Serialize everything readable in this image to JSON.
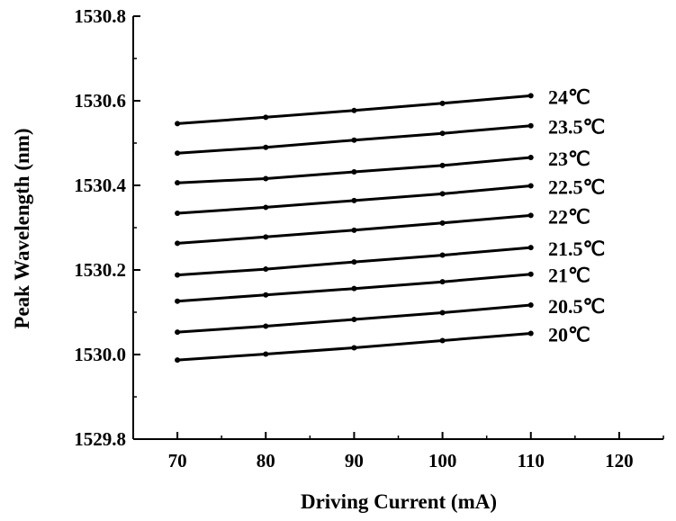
{
  "chart_data": {
    "type": "line",
    "title": "",
    "xlabel": "Driving Current (mA)",
    "ylabel": "Peak Wavelength (nm)",
    "xlim": [
      65,
      125
    ],
    "ylim": [
      1529.8,
      1530.8
    ],
    "x_ticks": [
      "70",
      "80",
      "90",
      "100",
      "110",
      "120"
    ],
    "y_ticks": [
      "1529.8",
      "1530.0",
      "1530.2",
      "1530.4",
      "1530.6",
      "1530.8"
    ],
    "x": [
      70,
      80,
      90,
      100,
      110
    ],
    "grid": false,
    "series_labels_placement": "right end of each line",
    "color": "#000000",
    "series": [
      {
        "name": "24℃",
        "values": [
          1530.546,
          1530.561,
          1530.577,
          1530.594,
          1530.612
        ]
      },
      {
        "name": "23.5℃",
        "values": [
          1530.476,
          1530.49,
          1530.507,
          1530.523,
          1530.541
        ]
      },
      {
        "name": "23℃",
        "values": [
          1530.406,
          1530.416,
          1530.432,
          1530.447,
          1530.466
        ]
      },
      {
        "name": "22.5℃",
        "values": [
          1530.334,
          1530.348,
          1530.364,
          1530.38,
          1530.399
        ]
      },
      {
        "name": "22℃",
        "values": [
          1530.263,
          1530.278,
          1530.294,
          1530.311,
          1530.329
        ]
      },
      {
        "name": "21.5℃",
        "values": [
          1530.188,
          1530.202,
          1530.219,
          1530.235,
          1530.253
        ]
      },
      {
        "name": "21℃",
        "values": [
          1530.126,
          1530.141,
          1530.156,
          1530.172,
          1530.19
        ]
      },
      {
        "name": "20.5℃",
        "values": [
          1530.053,
          1530.067,
          1530.083,
          1530.099,
          1530.117
        ]
      },
      {
        "name": "20℃",
        "values": [
          1529.987,
          1530.001,
          1530.016,
          1530.033,
          1530.05
        ]
      }
    ]
  }
}
